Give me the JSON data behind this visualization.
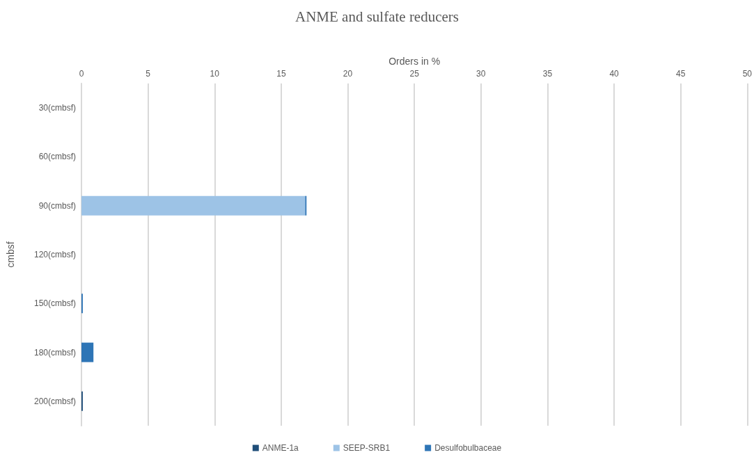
{
  "chart_data": {
    "type": "bar",
    "orientation": "horizontal",
    "stacked": true,
    "title": "ANME and sulfate reducers",
    "xlabel": "Orders in %",
    "ylabel": "cmbsf",
    "categories": [
      "30(cmbsf)",
      "60(cmbsf)",
      "90(cmbsf)",
      "120(cmbsf)",
      "150(cmbsf)",
      "180(cmbsf)",
      "200(cmbsf)"
    ],
    "series": [
      {
        "name": "ANME-1a",
        "color": "#1f4e79",
        "values": [
          0,
          0,
          0,
          0,
          0,
          0,
          0.1
        ]
      },
      {
        "name": "SEEP-SRB1",
        "color": "#9dc3e6",
        "values": [
          0,
          0,
          16.8,
          0,
          0,
          0,
          0
        ]
      },
      {
        "name": "Desulfobulbaceae",
        "color": "#2e75b6",
        "values": [
          0,
          0,
          0.1,
          0,
          0.1,
          0.9,
          0
        ]
      }
    ],
    "xlim": [
      0,
      50
    ],
    "xticks": [
      0,
      5,
      10,
      15,
      20,
      25,
      30,
      35,
      40,
      45,
      50
    ],
    "grid": "x",
    "legend": "bottom"
  }
}
